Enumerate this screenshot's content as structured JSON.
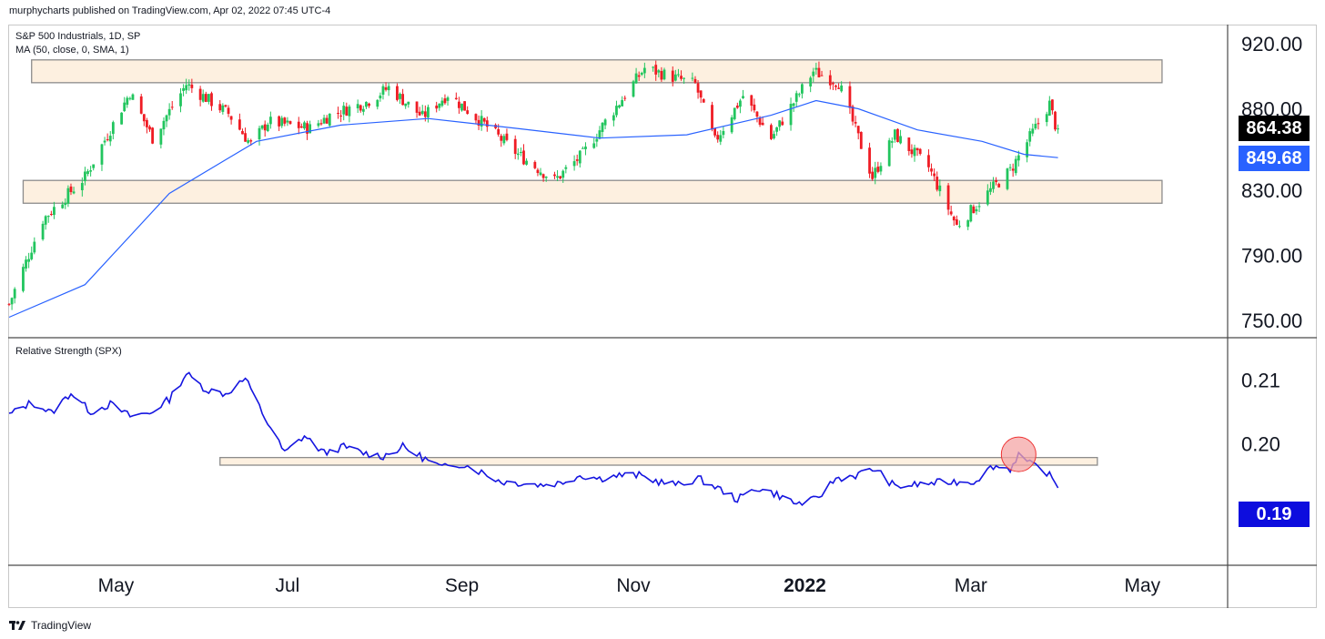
{
  "header": {
    "publisher_line": "murphycharts published on TradingView.com, Apr 02, 2022 07:45 UTC-4"
  },
  "footer": {
    "brand": "TradingView",
    "logo_icon": "tradingview-logo-icon"
  },
  "colors": {
    "up_candle": "#26a69a",
    "up_candle_bright": "#22c55e",
    "down_candle": "#ef1c24",
    "ma_line": "#2962ff",
    "rs_line": "#1515e0",
    "zone_fill": "#fdf0e0",
    "zone_stroke": "#8c8c8c",
    "last_price_bg": "#000000",
    "ma_tag_bg": "#2962ff",
    "rs_tag_bg": "#0d0dde",
    "highlight_circle": "#f4a5a5"
  },
  "chart_data": [
    {
      "type": "candlestick",
      "title": "S&P 500 Industrials, 1D, SP",
      "indicator_label": "MA (50, close, 0, SMA, 1)",
      "ylim": [
        740,
        930
      ],
      "yticks": [
        920.0,
        880.0,
        830.0,
        790.0,
        750.0
      ],
      "ytick_labels": [
        "920.00",
        "880.00",
        "830.00",
        "790.00",
        "750.00"
      ],
      "last_price": "864.38",
      "ma_value": "849.68",
      "x_range": [
        "2021-03-24",
        "2022-05-31"
      ],
      "resistance_zone": {
        "low": 896,
        "high": 910,
        "from": "2021-04-01",
        "to": "2022-05-08"
      },
      "support_zone": {
        "low": 822,
        "high": 836,
        "from": "2021-03-29",
        "to": "2022-05-08"
      },
      "close_path": [
        [
          "2021-03-24",
          760
        ],
        [
          "2021-04-05",
          812
        ],
        [
          "2021-04-20",
          838
        ],
        [
          "2021-05-06",
          890
        ],
        [
          "2021-05-14",
          862
        ],
        [
          "2021-05-26",
          895
        ],
        [
          "2021-06-10",
          877
        ],
        [
          "2021-06-18",
          858
        ],
        [
          "2021-06-24",
          872
        ],
        [
          "2021-07-09",
          868
        ],
        [
          "2021-07-16",
          876
        ],
        [
          "2021-07-29",
          884
        ],
        [
          "2021-08-06",
          893
        ],
        [
          "2021-08-18",
          875
        ],
        [
          "2021-08-27",
          889
        ],
        [
          "2021-09-08",
          872
        ],
        [
          "2021-09-21",
          852
        ],
        [
          "2021-10-04",
          836
        ],
        [
          "2021-10-14",
          852
        ],
        [
          "2021-10-22",
          872
        ],
        [
          "2021-11-05",
          905
        ],
        [
          "2021-11-23",
          895
        ],
        [
          "2021-11-30",
          860
        ],
        [
          "2021-12-10",
          888
        ],
        [
          "2021-12-20",
          862
        ],
        [
          "2022-01-04",
          903
        ],
        [
          "2022-01-13",
          896
        ],
        [
          "2022-01-25",
          838
        ],
        [
          "2022-02-02",
          864
        ],
        [
          "2022-02-14",
          844
        ],
        [
          "2022-02-24",
          808
        ],
        [
          "2022-03-08",
          830
        ],
        [
          "2022-03-15",
          842
        ],
        [
          "2022-03-29",
          883
        ],
        [
          "2022-04-01",
          864
        ]
      ],
      "ma_path": [
        [
          "2021-03-24",
          752
        ],
        [
          "2021-04-20",
          772
        ],
        [
          "2021-05-20",
          828
        ],
        [
          "2021-06-20",
          860
        ],
        [
          "2021-07-20",
          870
        ],
        [
          "2021-08-20",
          874
        ],
        [
          "2021-09-20",
          868
        ],
        [
          "2021-10-20",
          862
        ],
        [
          "2021-11-20",
          864
        ],
        [
          "2021-12-20",
          876
        ],
        [
          "2022-01-05",
          885
        ],
        [
          "2022-01-20",
          880
        ],
        [
          "2022-02-10",
          867
        ],
        [
          "2022-03-05",
          860
        ],
        [
          "2022-03-20",
          852
        ],
        [
          "2022-04-01",
          850
        ]
      ]
    },
    {
      "type": "line",
      "title": "Relative Strength (SPX)",
      "ylim": [
        0.181,
        0.2165
      ],
      "yticks": [
        0.21,
        0.2
      ],
      "ytick_labels": [
        "0.21",
        "0.20"
      ],
      "last_value": "0.19",
      "resistance_zone": {
        "low": 0.1966,
        "high": 0.1978,
        "from": "2021-06-07",
        "to": "2022-04-15"
      },
      "highlight": {
        "date": "2022-03-18",
        "value": 0.1983
      },
      "path": [
        [
          "2021-03-24",
          0.2045
        ],
        [
          "2021-04-01",
          0.2065
        ],
        [
          "2021-04-08",
          0.2048
        ],
        [
          "2021-04-15",
          0.208
        ],
        [
          "2021-04-22",
          0.205
        ],
        [
          "2021-04-29",
          0.2062
        ],
        [
          "2021-05-06",
          0.2043
        ],
        [
          "2021-05-13",
          0.2048
        ],
        [
          "2021-05-20",
          0.207
        ],
        [
          "2021-05-26",
          0.211
        ],
        [
          "2021-06-02",
          0.2085
        ],
        [
          "2021-06-09",
          0.2078
        ],
        [
          "2021-06-16",
          0.2102
        ],
        [
          "2021-06-23",
          0.204
        ],
        [
          "2021-06-30",
          0.1985
        ],
        [
          "2021-07-07",
          0.2012
        ],
        [
          "2021-07-14",
          0.1985
        ],
        [
          "2021-07-21",
          0.1995
        ],
        [
          "2021-07-28",
          0.1985
        ],
        [
          "2021-08-04",
          0.198
        ],
        [
          "2021-08-11",
          0.1995
        ],
        [
          "2021-08-18",
          0.1978
        ],
        [
          "2021-08-25",
          0.1962
        ],
        [
          "2021-09-01",
          0.1968
        ],
        [
          "2021-09-08",
          0.1955
        ],
        [
          "2021-09-15",
          0.194
        ],
        [
          "2021-09-22",
          0.1938
        ],
        [
          "2021-09-29",
          0.1935
        ],
        [
          "2021-10-06",
          0.1938
        ],
        [
          "2021-10-13",
          0.195
        ],
        [
          "2021-10-20",
          0.1945
        ],
        [
          "2021-10-27",
          0.195
        ],
        [
          "2021-11-03",
          0.195
        ],
        [
          "2021-11-10",
          0.194
        ],
        [
          "2021-11-17",
          0.1935
        ],
        [
          "2021-11-24",
          0.1945
        ],
        [
          "2021-12-01",
          0.193
        ],
        [
          "2021-12-08",
          0.1912
        ],
        [
          "2021-12-15",
          0.193
        ],
        [
          "2021-12-22",
          0.192
        ],
        [
          "2021-12-29",
          0.1905
        ],
        [
          "2022-01-05",
          0.1912
        ],
        [
          "2022-01-12",
          0.1945
        ],
        [
          "2022-01-19",
          0.195
        ],
        [
          "2022-01-26",
          0.196
        ],
        [
          "2022-02-02",
          0.1932
        ],
        [
          "2022-02-09",
          0.1935
        ],
        [
          "2022-02-16",
          0.1938
        ],
        [
          "2022-02-23",
          0.194
        ],
        [
          "2022-03-02",
          0.194
        ],
        [
          "2022-03-09",
          0.1965
        ],
        [
          "2022-03-15",
          0.196
        ],
        [
          "2022-03-18",
          0.1983
        ],
        [
          "2022-03-22",
          0.1968
        ],
        [
          "2022-03-28",
          0.1955
        ],
        [
          "2022-04-01",
          0.1933
        ]
      ]
    }
  ],
  "x_axis": {
    "ticks": [
      {
        "date": "2021-05-01",
        "label": "May",
        "bold": false
      },
      {
        "date": "2021-07-01",
        "label": "Jul",
        "bold": false
      },
      {
        "date": "2021-09-01",
        "label": "Sep",
        "bold": false
      },
      {
        "date": "2021-11-01",
        "label": "Nov",
        "bold": false
      },
      {
        "date": "2022-01-01",
        "label": "2022",
        "bold": true
      },
      {
        "date": "2022-03-01",
        "label": "Mar",
        "bold": false
      },
      {
        "date": "2022-05-01",
        "label": "May",
        "bold": false
      }
    ]
  }
}
